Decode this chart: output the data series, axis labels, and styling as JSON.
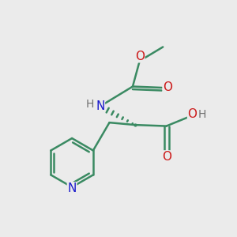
{
  "background_color": "#ebebeb",
  "bond_color": "#3a8a62",
  "bond_width": 1.8,
  "atom_colors": {
    "N": "#1a1acc",
    "O": "#cc1a1a",
    "H_gray": "#707070",
    "C": "#3a8a62"
  },
  "font_size": 10,
  "figsize": [
    3.0,
    3.0
  ],
  "dpi": 100
}
